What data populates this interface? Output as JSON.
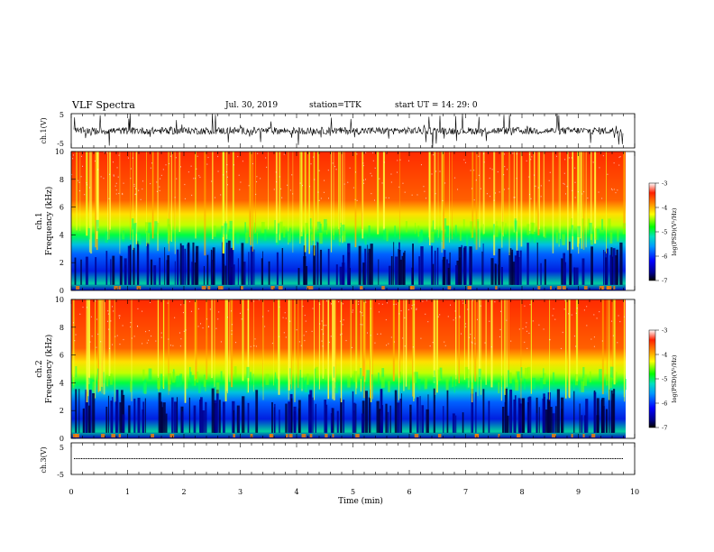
{
  "header": {
    "title": "VLF Spectra",
    "date": "Jul. 30, 2019",
    "station": "station=TTK",
    "start_ut": "start UT =  14: 29: 0"
  },
  "colors": {
    "spectrogram_scale": [
      "#000000",
      "#00008b",
      "#0000ff",
      "#0099ff",
      "#00e0c0",
      "#00ff00",
      "#ffff00",
      "#ff8000",
      "#ff2000",
      "#ffffff"
    ],
    "trace": "#000000"
  },
  "chart_data": [
    {
      "type": "line",
      "name": "ch1-waveform",
      "ylabel": "ch.1(V)",
      "ylim": [
        -5,
        5
      ],
      "y_ticks": [
        "5",
        "-5"
      ],
      "xlim": [
        0,
        10
      ],
      "description_values": {
        "baseline": 0,
        "typical_amplitude": 1.5,
        "spike_max": 5
      }
    },
    {
      "type": "heatmap",
      "name": "ch1-spectrogram",
      "ylabel_line1": "ch.1",
      "ylabel_line2": "Frequency (kHz)",
      "ylim": [
        0,
        10
      ],
      "y_ticks": [
        "0",
        "2",
        "4",
        "6",
        "8",
        "10"
      ],
      "xlim": [
        0,
        10
      ],
      "colorbar": {
        "label": "log(PSD)(V²/Hz)",
        "ticks": [
          "-3",
          "-4",
          "-5",
          "-6",
          "-7"
        ],
        "range": [
          -7,
          -3
        ]
      }
    },
    {
      "type": "heatmap",
      "name": "ch2-spectrogram",
      "ylabel_line1": "ch.2",
      "ylabel_line2": "Frequency (kHz)",
      "ylim": [
        0,
        10
      ],
      "y_ticks": [
        "0",
        "2",
        "4",
        "6",
        "8",
        "10"
      ],
      "xlim": [
        0,
        10
      ],
      "colorbar": {
        "label": "log(PSD)(V²/Hz)",
        "ticks": [
          "-3",
          "-4",
          "-5",
          "-6",
          "-7"
        ],
        "range": [
          -7,
          -3
        ]
      }
    },
    {
      "type": "line",
      "name": "ch3-waveform",
      "ylabel": "ch.3(V)",
      "ylim": [
        -5,
        5
      ],
      "y_ticks": [
        "5",
        "-5"
      ],
      "xlim": [
        0,
        10
      ],
      "description_values": {
        "baseline": 0,
        "typical_amplitude": 0
      }
    }
  ],
  "x_axis": {
    "label": "Time (min)",
    "ticks": [
      "0",
      "1",
      "2",
      "3",
      "4",
      "5",
      "6",
      "7",
      "8",
      "9",
      "10"
    ]
  }
}
